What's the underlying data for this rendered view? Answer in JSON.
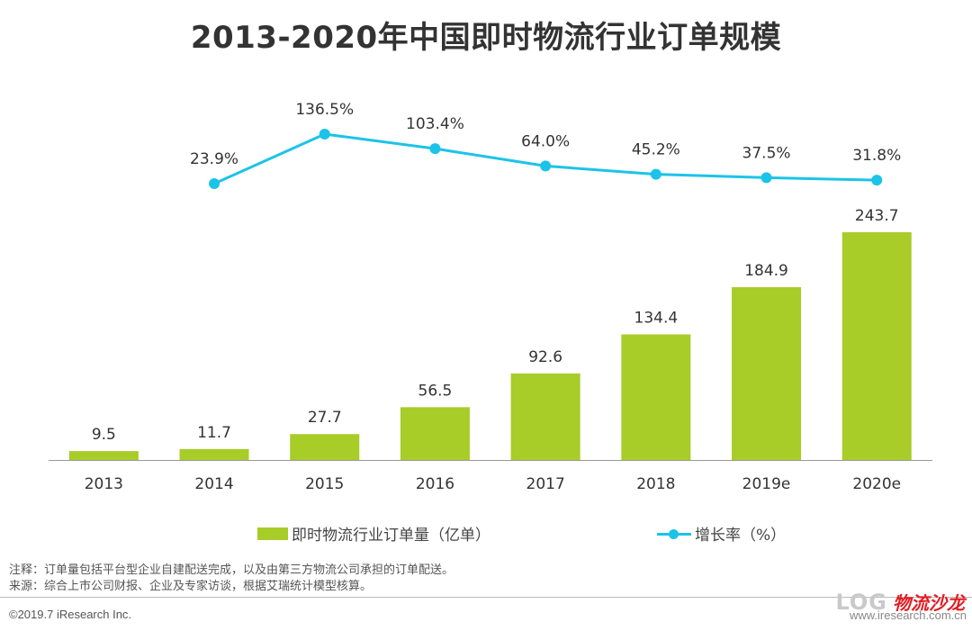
{
  "title": "2013-2020年中国即时物流行业订单规模",
  "chart_data": {
    "type": "bar",
    "categories": [
      "2013",
      "2014",
      "2015",
      "2016",
      "2017",
      "2018",
      "2019e",
      "2020e"
    ],
    "series": [
      {
        "name": "即时物流行业订单量（亿单）",
        "type": "bar",
        "values": [
          9.5,
          11.7,
          27.7,
          56.5,
          92.6,
          134.4,
          184.9,
          243.7
        ],
        "labels": [
          "9.5",
          "11.7",
          "27.7",
          "56.5",
          "92.6",
          "134.4",
          "184.9",
          "243.7"
        ],
        "color": "#a8cc28"
      },
      {
        "name": "增长率（%）",
        "type": "line",
        "values": [
          null,
          23.9,
          136.5,
          103.4,
          64.0,
          45.2,
          37.5,
          31.8
        ],
        "labels": [
          "",
          "23.9%",
          "136.5%",
          "103.4%",
          "64.0%",
          "45.2%",
          "37.5%",
          "31.8%"
        ],
        "color": "#1cc3e8"
      }
    ],
    "legend_position": "bottom",
    "grid": false
  },
  "notes": {
    "note": "注释：订单量包括平台型企业自建配送完成，以及由第三方物流公司承担的订单配送。",
    "source": "来源：综合上市公司财报、企业及专家访谈，根据艾瑞统计模型核算。"
  },
  "footer": {
    "copyright": "©2019.7 iResearch Inc.",
    "url": "www.iresearch.com.cn"
  },
  "watermark": {
    "log_text": "LOG",
    "brand_text": "物流沙龙"
  },
  "colors": {
    "bar": "#a8cc28",
    "line": "#1cc3e8",
    "text": "#333333"
  }
}
